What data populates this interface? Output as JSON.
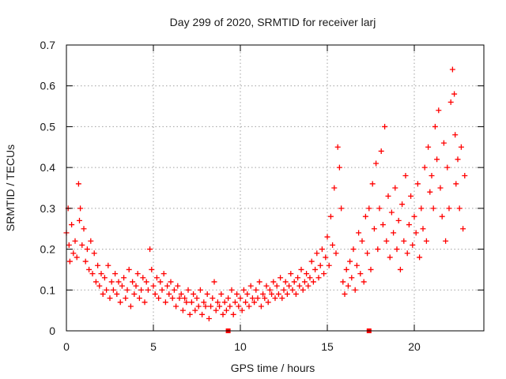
{
  "chart_data": {
    "type": "scatter",
    "title": "Day 299 of 2020, SRMTID for receiver larj",
    "xlabel": "GPS time / hours",
    "ylabel": "SRMTID / TECUs",
    "xlim": [
      0,
      24
    ],
    "ylim": [
      0,
      0.7
    ],
    "x_ticks": [
      0,
      5,
      10,
      15,
      20
    ],
    "x_tick_labels": [
      "0",
      "5",
      "10",
      "15",
      "20"
    ],
    "y_ticks": [
      0,
      0.1,
      0.2,
      0.3,
      0.4,
      0.5,
      0.6,
      0.7
    ],
    "y_tick_labels": [
      "0",
      "0.1",
      "0.2",
      "0.3",
      "0.4",
      "0.5",
      "0.6",
      "0.7"
    ],
    "grid": true,
    "marker": "plus",
    "color": "#ff0000",
    "series": [
      {
        "name": "SRMTID",
        "points": [
          [
            0.0,
            0.24
          ],
          [
            0.1,
            0.3
          ],
          [
            0.15,
            0.21
          ],
          [
            0.2,
            0.17
          ],
          [
            0.3,
            0.26
          ],
          [
            0.4,
            0.19
          ],
          [
            0.5,
            0.22
          ],
          [
            0.6,
            0.18
          ],
          [
            0.7,
            0.36
          ],
          [
            0.75,
            0.27
          ],
          [
            0.8,
            0.3
          ],
          [
            0.9,
            0.21
          ],
          [
            1.0,
            0.25
          ],
          [
            1.1,
            0.17
          ],
          [
            1.2,
            0.2
          ],
          [
            1.3,
            0.15
          ],
          [
            1.4,
            0.22
          ],
          [
            1.5,
            0.14
          ],
          [
            1.6,
            0.19
          ],
          [
            1.7,
            0.12
          ],
          [
            1.8,
            0.16
          ],
          [
            1.9,
            0.11
          ],
          [
            2.0,
            0.14
          ],
          [
            2.1,
            0.09
          ],
          [
            2.2,
            0.13
          ],
          [
            2.3,
            0.1
          ],
          [
            2.4,
            0.16
          ],
          [
            2.5,
            0.08
          ],
          [
            2.6,
            0.12
          ],
          [
            2.7,
            0.1
          ],
          [
            2.8,
            0.14
          ],
          [
            2.9,
            0.09
          ],
          [
            3.0,
            0.12
          ],
          [
            3.1,
            0.07
          ],
          [
            3.2,
            0.11
          ],
          [
            3.3,
            0.13
          ],
          [
            3.4,
            0.08
          ],
          [
            3.5,
            0.1
          ],
          [
            3.6,
            0.15
          ],
          [
            3.7,
            0.06
          ],
          [
            3.8,
            0.12
          ],
          [
            3.9,
            0.09
          ],
          [
            4.0,
            0.11
          ],
          [
            4.1,
            0.14
          ],
          [
            4.2,
            0.08
          ],
          [
            4.3,
            0.1
          ],
          [
            4.4,
            0.13
          ],
          [
            4.5,
            0.07
          ],
          [
            4.6,
            0.12
          ],
          [
            4.7,
            0.1
          ],
          [
            4.8,
            0.2
          ],
          [
            4.9,
            0.15
          ],
          [
            5.0,
            0.11
          ],
          [
            5.1,
            0.09
          ],
          [
            5.2,
            0.13
          ],
          [
            5.3,
            0.08
          ],
          [
            5.4,
            0.12
          ],
          [
            5.5,
            0.1
          ],
          [
            5.6,
            0.14
          ],
          [
            5.7,
            0.07
          ],
          [
            5.8,
            0.11
          ],
          [
            5.9,
            0.09
          ],
          [
            6.0,
            0.12
          ],
          [
            6.1,
            0.08
          ],
          [
            6.2,
            0.1
          ],
          [
            6.3,
            0.06
          ],
          [
            6.4,
            0.11
          ],
          [
            6.5,
            0.08
          ],
          [
            6.6,
            0.09
          ],
          [
            6.7,
            0.05
          ],
          [
            6.8,
            0.08
          ],
          [
            6.9,
            0.07
          ],
          [
            7.0,
            0.1
          ],
          [
            7.1,
            0.04
          ],
          [
            7.2,
            0.07
          ],
          [
            7.3,
            0.09
          ],
          [
            7.4,
            0.05
          ],
          [
            7.5,
            0.08
          ],
          [
            7.6,
            0.06
          ],
          [
            7.7,
            0.1
          ],
          [
            7.8,
            0.04
          ],
          [
            7.9,
            0.07
          ],
          [
            8.0,
            0.06
          ],
          [
            8.1,
            0.09
          ],
          [
            8.2,
            0.03
          ],
          [
            8.3,
            0.06
          ],
          [
            8.4,
            0.08
          ],
          [
            8.5,
            0.12
          ],
          [
            8.6,
            0.05
          ],
          [
            8.7,
            0.07
          ],
          [
            8.8,
            0.06
          ],
          [
            8.9,
            0.09
          ],
          [
            9.0,
            0.04
          ],
          [
            9.1,
            0.07
          ],
          [
            9.2,
            0.05
          ],
          [
            9.3,
            0.08
          ],
          [
            9.4,
            0.06
          ],
          [
            9.5,
            0.1
          ],
          [
            9.6,
            0.04
          ],
          [
            9.7,
            0.07
          ],
          [
            9.8,
            0.09
          ],
          [
            9.9,
            0.06
          ],
          [
            10.0,
            0.08
          ],
          [
            10.1,
            0.05
          ],
          [
            10.2,
            0.1
          ],
          [
            10.3,
            0.07
          ],
          [
            10.4,
            0.09
          ],
          [
            10.5,
            0.06
          ],
          [
            10.6,
            0.11
          ],
          [
            10.7,
            0.08
          ],
          [
            10.8,
            0.07
          ],
          [
            10.9,
            0.1
          ],
          [
            11.0,
            0.08
          ],
          [
            11.1,
            0.12
          ],
          [
            11.2,
            0.06
          ],
          [
            11.3,
            0.09
          ],
          [
            11.4,
            0.08
          ],
          [
            11.5,
            0.11
          ],
          [
            11.6,
            0.07
          ],
          [
            11.7,
            0.1
          ],
          [
            11.8,
            0.09
          ],
          [
            11.9,
            0.12
          ],
          [
            12.0,
            0.08
          ],
          [
            12.1,
            0.11
          ],
          [
            12.2,
            0.09
          ],
          [
            12.3,
            0.13
          ],
          [
            12.4,
            0.08
          ],
          [
            12.5,
            0.1
          ],
          [
            12.6,
            0.12
          ],
          [
            12.7,
            0.09
          ],
          [
            12.8,
            0.11
          ],
          [
            12.9,
            0.14
          ],
          [
            13.0,
            0.1
          ],
          [
            13.1,
            0.12
          ],
          [
            13.2,
            0.09
          ],
          [
            13.3,
            0.13
          ],
          [
            13.4,
            0.11
          ],
          [
            13.5,
            0.15
          ],
          [
            13.6,
            0.1
          ],
          [
            13.7,
            0.12
          ],
          [
            13.8,
            0.14
          ],
          [
            13.9,
            0.11
          ],
          [
            14.0,
            0.13
          ],
          [
            14.1,
            0.17
          ],
          [
            14.2,
            0.12
          ],
          [
            14.3,
            0.15
          ],
          [
            14.4,
            0.19
          ],
          [
            14.5,
            0.13
          ],
          [
            14.6,
            0.16
          ],
          [
            14.7,
            0.2
          ],
          [
            14.8,
            0.14
          ],
          [
            14.9,
            0.18
          ],
          [
            15.0,
            0.23
          ],
          [
            15.1,
            0.16
          ],
          [
            15.2,
            0.28
          ],
          [
            15.3,
            0.21
          ],
          [
            15.4,
            0.35
          ],
          [
            15.5,
            0.19
          ],
          [
            15.6,
            0.45
          ],
          [
            15.7,
            0.4
          ],
          [
            15.8,
            0.3
          ],
          [
            15.9,
            0.12
          ],
          [
            16.0,
            0.09
          ],
          [
            16.1,
            0.15
          ],
          [
            16.2,
            0.11
          ],
          [
            16.3,
            0.17
          ],
          [
            16.4,
            0.13
          ],
          [
            16.5,
            0.2
          ],
          [
            16.6,
            0.1
          ],
          [
            16.7,
            0.16
          ],
          [
            16.8,
            0.24
          ],
          [
            16.9,
            0.14
          ],
          [
            17.0,
            0.22
          ],
          [
            17.1,
            0.12
          ],
          [
            17.2,
            0.28
          ],
          [
            17.3,
            0.19
          ],
          [
            17.4,
            0.3
          ],
          [
            17.5,
            0.15
          ],
          [
            17.6,
            0.36
          ],
          [
            17.7,
            0.25
          ],
          [
            17.8,
            0.41
          ],
          [
            17.9,
            0.2
          ],
          [
            18.0,
            0.3
          ],
          [
            18.1,
            0.44
          ],
          [
            18.2,
            0.26
          ],
          [
            18.3,
            0.5
          ],
          [
            18.4,
            0.22
          ],
          [
            18.5,
            0.33
          ],
          [
            18.6,
            0.18
          ],
          [
            18.7,
            0.29
          ],
          [
            18.8,
            0.24
          ],
          [
            18.9,
            0.35
          ],
          [
            19.0,
            0.2
          ],
          [
            19.1,
            0.27
          ],
          [
            19.2,
            0.15
          ],
          [
            19.3,
            0.31
          ],
          [
            19.4,
            0.22
          ],
          [
            19.5,
            0.38
          ],
          [
            19.6,
            0.19
          ],
          [
            19.7,
            0.26
          ],
          [
            19.8,
            0.33
          ],
          [
            19.9,
            0.21
          ],
          [
            20.0,
            0.28
          ],
          [
            20.1,
            0.24
          ],
          [
            20.2,
            0.36
          ],
          [
            20.3,
            0.18
          ],
          [
            20.4,
            0.3
          ],
          [
            20.5,
            0.25
          ],
          [
            20.6,
            0.4
          ],
          [
            20.7,
            0.22
          ],
          [
            20.8,
            0.45
          ],
          [
            20.9,
            0.34
          ],
          [
            21.0,
            0.38
          ],
          [
            21.1,
            0.3
          ],
          [
            21.2,
            0.5
          ],
          [
            21.3,
            0.42
          ],
          [
            21.4,
            0.54
          ],
          [
            21.5,
            0.35
          ],
          [
            21.6,
            0.28
          ],
          [
            21.7,
            0.46
          ],
          [
            21.8,
            0.22
          ],
          [
            21.9,
            0.4
          ],
          [
            22.0,
            0.3
          ],
          [
            22.1,
            0.56
          ],
          [
            22.2,
            0.64
          ],
          [
            22.3,
            0.58
          ],
          [
            22.35,
            0.48
          ],
          [
            22.4,
            0.36
          ],
          [
            22.5,
            0.42
          ],
          [
            22.6,
            0.3
          ],
          [
            22.7,
            0.45
          ],
          [
            22.8,
            0.25
          ],
          [
            22.9,
            0.38
          ]
        ]
      }
    ],
    "axis_markers": [
      {
        "x": 9.3,
        "label": ""
      },
      {
        "x": 17.4,
        "label": ""
      }
    ]
  }
}
